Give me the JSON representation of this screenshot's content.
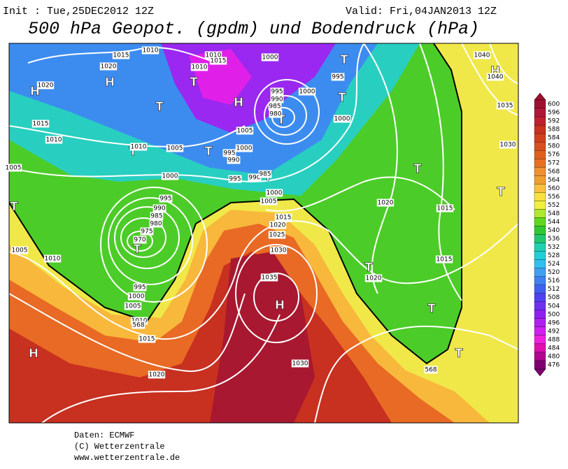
{
  "header": {
    "init": "Init : Tue,25DEC2012 12Z",
    "valid": "Valid: Fri,04JAN2013 12Z",
    "title": "500 hPa Geopot. (gpdm) und Bodendruck (hPa)"
  },
  "colorbar": {
    "ticks": [
      600,
      596,
      592,
      588,
      584,
      580,
      576,
      572,
      568,
      564,
      560,
      556,
      552,
      548,
      544,
      540,
      536,
      532,
      528,
      524,
      520,
      516,
      512,
      508,
      504,
      500,
      496,
      492,
      488,
      484,
      480,
      476
    ],
    "colors": [
      "#a01030",
      "#b01838",
      "#c02030",
      "#c83020",
      "#d04020",
      "#d85020",
      "#e06020",
      "#e87020",
      "#f09030",
      "#f0a030",
      "#f8c040",
      "#f8e040",
      "#f0f040",
      "#b0e830",
      "#60d820",
      "#30c830",
      "#20c870",
      "#20d0b0",
      "#20d0d8",
      "#30c0f0",
      "#40a0f0",
      "#4080f0",
      "#4060f0",
      "#5040f0",
      "#7030f0",
      "#9020f0",
      "#b020f0",
      "#d020f0",
      "#f020e0",
      "#e010b0",
      "#b00890",
      "#800070"
    ]
  },
  "map": {
    "labels": [
      "H",
      "H",
      "H",
      "H",
      "H",
      "H",
      "T",
      "T",
      "T",
      "T",
      "T",
      "T",
      "T",
      "T",
      "T",
      "T",
      "T",
      "T",
      "T",
      "T",
      "T",
      "1015",
      "1010",
      "1020",
      "1020",
      "1010",
      "1010",
      "1015",
      "1000",
      "995",
      "1000",
      "995",
      "990",
      "985",
      "980",
      "1000",
      "1005",
      "1000",
      "995",
      "990",
      "995",
      "990",
      "985",
      "1015",
      "1010",
      "1010",
      "1005",
      "1000",
      "1005",
      "995",
      "990",
      "985",
      "980",
      "975",
      "970",
      "1000",
      "1005",
      "1015",
      "1020",
      "1025",
      "1030",
      "1035",
      "1020",
      "1015",
      "1035",
      "1030",
      "1040",
      "1040",
      "1005",
      "1010",
      "995",
      "1000",
      "1005",
      "1010",
      "1015",
      "1020",
      "1020",
      "1015",
      "1030",
      "568",
      "568"
    ]
  },
  "footer": {
    "lines": [
      "Daten: ECMWF",
      "(C) Wetterzentrale",
      "www.wetterzentrale.de"
    ]
  }
}
